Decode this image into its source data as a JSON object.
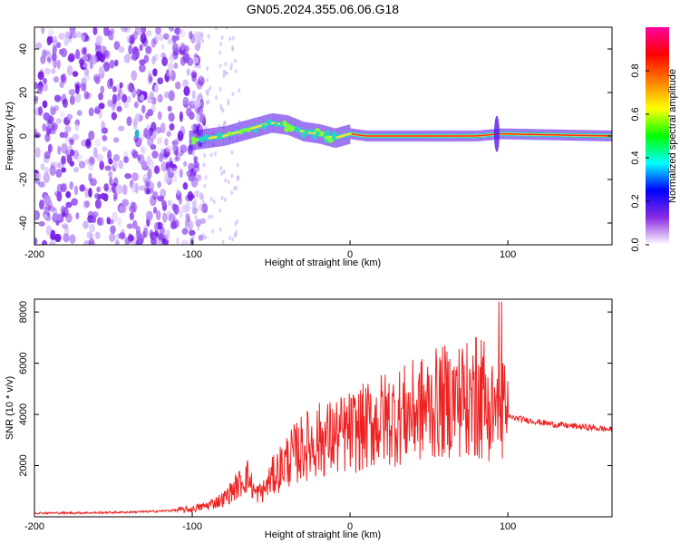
{
  "title": "GN05.2024.355.06.06.G18",
  "chart_data": [
    {
      "type": "heatmap",
      "xlabel": "Height of straight line (km)",
      "ylabel": "Frequency (Hz)",
      "xlim": [
        -200,
        166
      ],
      "ylim": [
        -50,
        50
      ],
      "xticks": [
        -200,
        -100,
        0,
        100
      ],
      "yticks": [
        -40,
        -20,
        0,
        20,
        40
      ],
      "colorbar": {
        "label": "Normalized spectral amplitude",
        "range": [
          0,
          1
        ],
        "ticks": [
          "0.0",
          "0.2",
          "0.4",
          "0.6",
          "0.8"
        ],
        "colormap": [
          "#ffffff",
          "#8a2be2",
          "#0000ff",
          "#00ffff",
          "#00ff00",
          "#ffff00",
          "#ff8000",
          "#ff0000",
          "#ff00a0"
        ]
      },
      "features": {
        "noise_region_km": [
          -200,
          -100
        ],
        "signal_line_start_km": -100,
        "signal_line_frequency_hz": [
          {
            "x": -100,
            "y": -2
          },
          {
            "x": -80,
            "y": 0
          },
          {
            "x": -65,
            "y": 3
          },
          {
            "x": -50,
            "y": 6
          },
          {
            "x": -40,
            "y": 5
          },
          {
            "x": -30,
            "y": 2
          },
          {
            "x": -20,
            "y": 1
          },
          {
            "x": -10,
            "y": -1
          },
          {
            "x": 0,
            "y": 1
          },
          {
            "x": 10,
            "y": 0
          },
          {
            "x": 50,
            "y": 0
          },
          {
            "x": 80,
            "y": 0
          },
          {
            "x": 95,
            "y": 1
          },
          {
            "x": 166,
            "y": 0
          }
        ]
      }
    },
    {
      "type": "line",
      "xlabel": "Height of straight line (km)",
      "ylabel": "SNR (10 * v/v)",
      "xlim": [
        -200,
        166
      ],
      "ylim": [
        0,
        8500
      ],
      "xticks": [
        -200,
        -100,
        0,
        100
      ],
      "yticks": [
        2000,
        4000,
        6000,
        8000
      ],
      "color": "#ee2222",
      "series": [
        {
          "x": [
            -200,
            -180,
            -160,
            -140,
            -120,
            -100,
            -90,
            -80,
            -70,
            -65,
            -60,
            -55,
            -50,
            -40,
            -30,
            -20,
            -10,
            0,
            10,
            20,
            30,
            40,
            50,
            60,
            70,
            80,
            90,
            95,
            100,
            110,
            120,
            130,
            140,
            150,
            166
          ],
          "y": [
            150,
            150,
            160,
            180,
            220,
            300,
            450,
            700,
            1300,
            1600,
            900,
            1000,
            1500,
            2200,
            2700,
            3000,
            3100,
            3300,
            3500,
            3800,
            3900,
            4100,
            4300,
            4500,
            4600,
            4500,
            4200,
            4400,
            3900,
            3800,
            3700,
            3600,
            3550,
            3500,
            3400
          ]
        }
      ]
    }
  ]
}
